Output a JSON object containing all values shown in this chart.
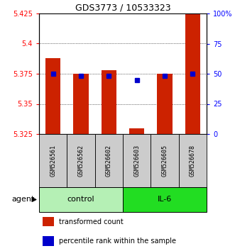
{
  "title": "GDS3773 / 10533323",
  "samples": [
    "GSM526561",
    "GSM526562",
    "GSM526602",
    "GSM526603",
    "GSM526605",
    "GSM526678"
  ],
  "red_values": [
    5.388,
    5.375,
    5.378,
    5.33,
    5.375,
    5.425
  ],
  "blue_values": [
    50,
    48,
    48,
    45,
    48,
    50
  ],
  "y_min": 5.325,
  "y_max": 5.425,
  "y_ticks": [
    5.325,
    5.35,
    5.375,
    5.4,
    5.425
  ],
  "y2_ticks": [
    0,
    25,
    50,
    75,
    100
  ],
  "y2_labels": [
    "0",
    "25",
    "50",
    "75",
    "100%"
  ],
  "group_control_color": "#b5f0b5",
  "group_il6_color": "#22dd22",
  "bar_color": "#cc2200",
  "dot_color": "#0000cc",
  "bar_width": 0.55,
  "sample_box_color": "#cccccc",
  "agent_label": "agent",
  "legend": [
    {
      "color": "#cc2200",
      "label": "transformed count"
    },
    {
      "color": "#0000cc",
      "label": "percentile rank within the sample"
    }
  ],
  "figsize": [
    3.31,
    3.54
  ],
  "dpi": 100
}
